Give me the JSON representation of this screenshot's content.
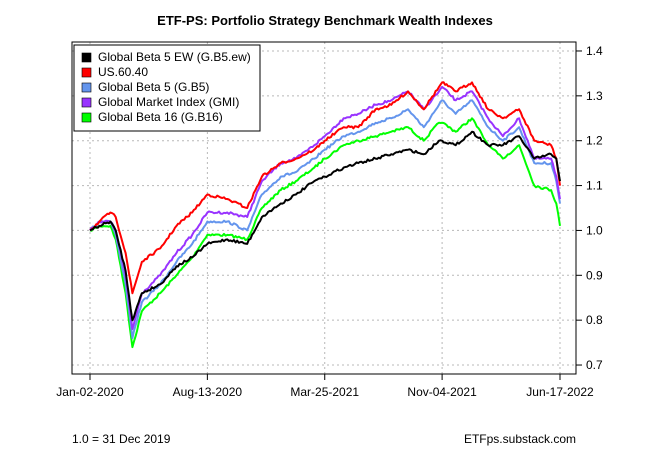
{
  "chart_data": {
    "type": "line",
    "title": "ETF-PS: Portfolio Strategy Benchmark Wealth Indexes",
    "xlabel": "",
    "ylabel": "",
    "x_ticks": [
      "Jan-02-2020",
      "Aug-13-2020",
      "Mar-25-2021",
      "Nov-04-2021",
      "Jun-17-2022"
    ],
    "y_ticks": [
      "0.7",
      "0.8",
      "0.9",
      "1.0",
      "1.1",
      "1.2",
      "1.3",
      "1.4"
    ],
    "ylim": [
      0.68,
      1.42
    ],
    "y_axis_side": "right",
    "grid": true,
    "legend_position": "top-left",
    "footnote_left": "1.0 = 31 Dec 2019",
    "footnote_right": "ETFps.substack.com",
    "series": [
      {
        "name": "Global Beta 5 EW (G.B5.ew)",
        "color": "#000000",
        "x": [
          "2020-01-02",
          "2020-01-20",
          "2020-02-10",
          "2020-02-20",
          "2020-03-10",
          "2020-03-23",
          "2020-04-10",
          "2020-05-15",
          "2020-06-15",
          "2020-07-15",
          "2020-08-13",
          "2020-09-20",
          "2020-10-28",
          "2020-11-25",
          "2020-12-31",
          "2021-01-29",
          "2021-03-05",
          "2021-03-25",
          "2021-04-30",
          "2021-05-28",
          "2021-06-30",
          "2021-07-30",
          "2021-08-31",
          "2021-09-30",
          "2021-10-29",
          "2021-11-04",
          "2021-11-30",
          "2021-12-31",
          "2022-01-31",
          "2022-02-28",
          "2022-03-31",
          "2022-04-29",
          "2022-05-31",
          "2022-06-10",
          "2022-06-17"
        ],
        "values": [
          1.0,
          1.01,
          1.02,
          1.0,
          0.91,
          0.8,
          0.86,
          0.88,
          0.92,
          0.94,
          0.97,
          0.98,
          0.97,
          1.03,
          1.06,
          1.08,
          1.11,
          1.12,
          1.14,
          1.15,
          1.16,
          1.17,
          1.18,
          1.17,
          1.2,
          1.2,
          1.19,
          1.22,
          1.19,
          1.19,
          1.21,
          1.16,
          1.17,
          1.16,
          1.11
        ]
      },
      {
        "name": "US.60.40",
        "color": "#ff0000",
        "x": [
          "2020-01-02",
          "2020-01-20",
          "2020-02-10",
          "2020-02-20",
          "2020-03-10",
          "2020-03-23",
          "2020-04-10",
          "2020-05-15",
          "2020-06-15",
          "2020-07-15",
          "2020-08-13",
          "2020-09-20",
          "2020-10-28",
          "2020-11-25",
          "2020-12-31",
          "2021-01-29",
          "2021-03-05",
          "2021-03-25",
          "2021-04-30",
          "2021-05-28",
          "2021-06-30",
          "2021-07-30",
          "2021-08-31",
          "2021-09-30",
          "2021-10-29",
          "2021-11-04",
          "2021-11-30",
          "2021-12-31",
          "2022-01-31",
          "2022-02-28",
          "2022-03-31",
          "2022-04-29",
          "2022-05-31",
          "2022-06-10",
          "2022-06-17"
        ],
        "values": [
          1.0,
          1.02,
          1.04,
          1.03,
          0.95,
          0.86,
          0.93,
          0.96,
          1.01,
          1.04,
          1.08,
          1.07,
          1.05,
          1.12,
          1.15,
          1.16,
          1.18,
          1.2,
          1.23,
          1.23,
          1.27,
          1.28,
          1.31,
          1.27,
          1.32,
          1.33,
          1.31,
          1.33,
          1.27,
          1.25,
          1.27,
          1.2,
          1.19,
          1.16,
          1.1
        ]
      },
      {
        "name": "Global Beta 5 (G.B5)",
        "color": "#6495ed",
        "x": [
          "2020-01-02",
          "2020-01-20",
          "2020-02-10",
          "2020-02-20",
          "2020-03-10",
          "2020-03-23",
          "2020-04-10",
          "2020-05-15",
          "2020-06-15",
          "2020-07-15",
          "2020-08-13",
          "2020-09-20",
          "2020-10-28",
          "2020-11-25",
          "2020-12-31",
          "2021-01-29",
          "2021-03-05",
          "2021-03-25",
          "2021-04-30",
          "2021-05-28",
          "2021-06-30",
          "2021-07-30",
          "2021-08-31",
          "2021-09-30",
          "2021-10-29",
          "2021-11-04",
          "2021-11-30",
          "2021-12-31",
          "2022-01-31",
          "2022-02-28",
          "2022-03-31",
          "2022-04-29",
          "2022-05-31",
          "2022-06-10",
          "2022-06-17"
        ],
        "values": [
          1.0,
          1.02,
          1.02,
          0.99,
          0.88,
          0.76,
          0.84,
          0.88,
          0.93,
          0.97,
          1.02,
          1.02,
          1.0,
          1.08,
          1.12,
          1.13,
          1.16,
          1.18,
          1.21,
          1.22,
          1.24,
          1.25,
          1.27,
          1.23,
          1.28,
          1.29,
          1.26,
          1.29,
          1.23,
          1.2,
          1.23,
          1.15,
          1.15,
          1.11,
          1.06
        ]
      },
      {
        "name": "Global Market Index (GMI)",
        "color": "#9933ff",
        "x": [
          "2020-01-02",
          "2020-01-20",
          "2020-02-10",
          "2020-02-20",
          "2020-03-10",
          "2020-03-23",
          "2020-04-10",
          "2020-05-15",
          "2020-06-15",
          "2020-07-15",
          "2020-08-13",
          "2020-09-20",
          "2020-10-28",
          "2020-11-25",
          "2020-12-31",
          "2021-01-29",
          "2021-03-05",
          "2021-03-25",
          "2021-04-30",
          "2021-05-28",
          "2021-06-30",
          "2021-07-30",
          "2021-08-31",
          "2021-09-30",
          "2021-10-29",
          "2021-11-04",
          "2021-11-30",
          "2021-12-31",
          "2022-01-31",
          "2022-02-28",
          "2022-03-31",
          "2022-04-29",
          "2022-05-31",
          "2022-06-10",
          "2022-06-17"
        ],
        "values": [
          1.0,
          1.02,
          1.02,
          1.0,
          0.9,
          0.78,
          0.86,
          0.9,
          0.95,
          0.99,
          1.04,
          1.04,
          1.03,
          1.11,
          1.15,
          1.16,
          1.19,
          1.21,
          1.25,
          1.26,
          1.28,
          1.29,
          1.31,
          1.27,
          1.31,
          1.32,
          1.29,
          1.31,
          1.25,
          1.21,
          1.25,
          1.16,
          1.16,
          1.12,
          1.07
        ]
      },
      {
        "name": "Global Beta 16 (G.B16)",
        "color": "#00ff00",
        "x": [
          "2020-01-02",
          "2020-01-20",
          "2020-02-10",
          "2020-02-20",
          "2020-03-10",
          "2020-03-23",
          "2020-04-10",
          "2020-05-15",
          "2020-06-15",
          "2020-07-15",
          "2020-08-13",
          "2020-09-20",
          "2020-10-28",
          "2020-11-25",
          "2020-12-31",
          "2021-01-29",
          "2021-03-05",
          "2021-03-25",
          "2021-04-30",
          "2021-05-28",
          "2021-06-30",
          "2021-07-30",
          "2021-08-31",
          "2021-09-30",
          "2021-10-29",
          "2021-11-04",
          "2021-11-30",
          "2021-12-31",
          "2022-01-31",
          "2022-02-28",
          "2022-03-31",
          "2022-04-29",
          "2022-05-31",
          "2022-06-10",
          "2022-06-17"
        ],
        "values": [
          1.0,
          1.01,
          1.01,
          0.98,
          0.86,
          0.74,
          0.82,
          0.86,
          0.9,
          0.94,
          0.99,
          0.99,
          0.98,
          1.05,
          1.09,
          1.11,
          1.14,
          1.16,
          1.19,
          1.2,
          1.21,
          1.22,
          1.23,
          1.2,
          1.24,
          1.24,
          1.22,
          1.25,
          1.19,
          1.16,
          1.19,
          1.1,
          1.09,
          1.06,
          1.01
        ]
      }
    ]
  }
}
